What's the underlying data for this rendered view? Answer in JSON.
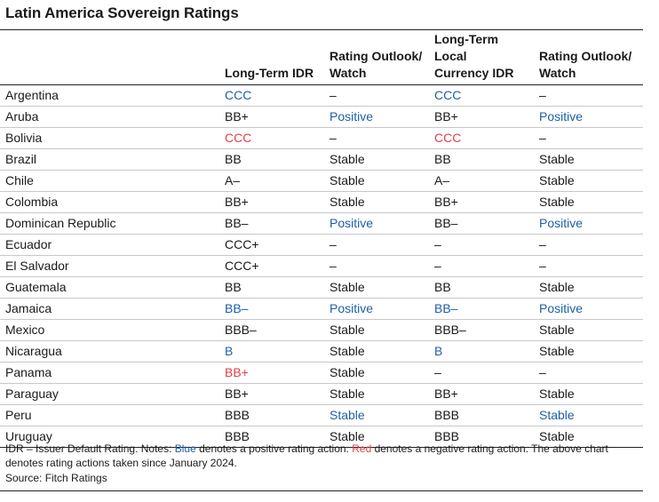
{
  "title": "Latin America Sovereign Ratings",
  "headers": {
    "country": "",
    "lt_idr": [
      "",
      "Long-Term IDR"
    ],
    "outlook1": [
      "Rating Outlook/",
      "Watch"
    ],
    "lc_idr": [
      "Long-Term Local",
      "Currency IDR"
    ],
    "outlook2": [
      "Rating Outlook/",
      "Watch"
    ]
  },
  "colors": {
    "blue": "#1f5fa8",
    "red": "#e0404a"
  },
  "rows": [
    {
      "country": "Argentina",
      "cells": [
        [
          "CCC",
          "blue"
        ],
        [
          "–",
          ""
        ],
        [
          "CCC",
          "blue"
        ],
        [
          "–",
          ""
        ]
      ]
    },
    {
      "country": "Aruba",
      "cells": [
        [
          "BB+",
          ""
        ],
        [
          "Positive",
          "blue"
        ],
        [
          "BB+",
          ""
        ],
        [
          "Positive",
          "blue"
        ]
      ]
    },
    {
      "country": "Bolivia",
      "cells": [
        [
          "CCC",
          "red"
        ],
        [
          "–",
          ""
        ],
        [
          "CCC",
          "red"
        ],
        [
          "–",
          ""
        ]
      ]
    },
    {
      "country": "Brazil",
      "cells": [
        [
          "BB",
          ""
        ],
        [
          "Stable",
          ""
        ],
        [
          "BB",
          ""
        ],
        [
          "Stable",
          ""
        ]
      ]
    },
    {
      "country": "Chile",
      "cells": [
        [
          "A–",
          ""
        ],
        [
          "Stable",
          ""
        ],
        [
          "A–",
          ""
        ],
        [
          "Stable",
          ""
        ]
      ]
    },
    {
      "country": "Colombia",
      "cells": [
        [
          "BB+",
          ""
        ],
        [
          "Stable",
          ""
        ],
        [
          "BB+",
          ""
        ],
        [
          "Stable",
          ""
        ]
      ]
    },
    {
      "country": "Dominican Republic",
      "cells": [
        [
          "BB–",
          ""
        ],
        [
          "Positive",
          "blue"
        ],
        [
          "BB–",
          ""
        ],
        [
          "Positive",
          "blue"
        ]
      ]
    },
    {
      "country": "Ecuador",
      "cells": [
        [
          "CCC+",
          ""
        ],
        [
          "–",
          ""
        ],
        [
          "–",
          ""
        ],
        [
          "–",
          ""
        ]
      ]
    },
    {
      "country": "El Salvador",
      "cells": [
        [
          "CCC+",
          ""
        ],
        [
          "–",
          ""
        ],
        [
          "–",
          ""
        ],
        [
          "–",
          ""
        ]
      ]
    },
    {
      "country": "Guatemala",
      "cells": [
        [
          "BB",
          ""
        ],
        [
          "Stable",
          ""
        ],
        [
          "BB",
          ""
        ],
        [
          "Stable",
          ""
        ]
      ]
    },
    {
      "country": "Jamaica",
      "cells": [
        [
          "BB–",
          "blue"
        ],
        [
          "Positive",
          "blue"
        ],
        [
          "BB–",
          "blue"
        ],
        [
          "Positive",
          "blue"
        ]
      ]
    },
    {
      "country": "Mexico",
      "cells": [
        [
          "BBB–",
          ""
        ],
        [
          "Stable",
          ""
        ],
        [
          "BBB–",
          ""
        ],
        [
          "Stable",
          ""
        ]
      ]
    },
    {
      "country": "Nicaragua",
      "cells": [
        [
          "B",
          "blue"
        ],
        [
          "Stable",
          ""
        ],
        [
          "B",
          "blue"
        ],
        [
          "Stable",
          ""
        ]
      ]
    },
    {
      "country": "Panama",
      "cells": [
        [
          "BB+",
          "red"
        ],
        [
          "Stable",
          ""
        ],
        [
          "–",
          ""
        ],
        [
          "–",
          ""
        ]
      ]
    },
    {
      "country": "Paraguay",
      "cells": [
        [
          "BB+",
          ""
        ],
        [
          "Stable",
          ""
        ],
        [
          "BB+",
          ""
        ],
        [
          "Stable",
          ""
        ]
      ]
    },
    {
      "country": "Peru",
      "cells": [
        [
          "BBB",
          ""
        ],
        [
          "Stable",
          "blue"
        ],
        [
          "BBB",
          ""
        ],
        [
          "Stable",
          "blue"
        ]
      ]
    },
    {
      "country": "Uruguay",
      "cells": [
        [
          "BBB",
          ""
        ],
        [
          "Stable",
          ""
        ],
        [
          "BBB",
          ""
        ],
        [
          "Stable",
          ""
        ]
      ]
    }
  ],
  "footnote": {
    "part1": "IDR – Issuer Default Rating. Notes: ",
    "blue_word": "Blue",
    "part2": " denotes a positive rating action. ",
    "red_word": "Red",
    "part3": " denotes a negative rating action. The above chart denotes rating actions taken since January 2024."
  },
  "source": "Source: Fitch Ratings"
}
